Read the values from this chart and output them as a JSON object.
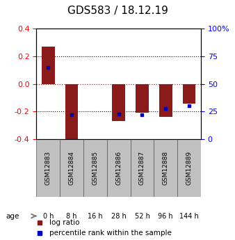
{
  "title": "GDS583 / 18.12.19",
  "samples": [
    "GSM12883",
    "GSM12884",
    "GSM12885",
    "GSM12886",
    "GSM12887",
    "GSM12888",
    "GSM12889"
  ],
  "ages": [
    "0 h",
    "8 h",
    "16 h",
    "28 h",
    "52 h",
    "96 h",
    "144 h"
  ],
  "log_ratios": [
    0.27,
    -0.42,
    0.0,
    -0.27,
    -0.21,
    -0.24,
    -0.14
  ],
  "percentile_ranks": [
    65,
    22,
    null,
    23,
    22,
    28,
    30
  ],
  "ylim": [
    -0.4,
    0.4
  ],
  "yticks": [
    -0.4,
    -0.2,
    0.0,
    0.2,
    0.4
  ],
  "bar_color": "#8B1A1A",
  "blue_color": "#0000BB",
  "bar_width": 0.55,
  "age_bg_colors": [
    "#c8f0c8",
    "#c8f0c8",
    "#c8f0c8",
    "#c8f0c8",
    "#66DD66",
    "#66DD66",
    "#66DD66"
  ],
  "sample_bg_color": "#C0C0C0",
  "title_fontsize": 11,
  "axis_fontsize": 8,
  "tick_fontsize": 8,
  "legend_fontsize": 7.5,
  "sample_fontsize": 6.5
}
